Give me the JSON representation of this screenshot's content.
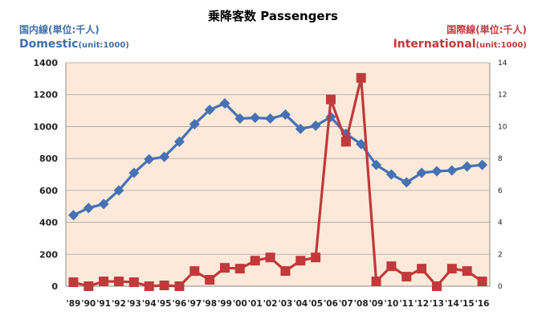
{
  "chart_data": {
    "type": "line",
    "title": "乗降客数 Passengers",
    "left_axis": {
      "label_jp": "国内線(単位:千人)",
      "label_en": "Domestic",
      "unit": "(unit:1000)",
      "ylim": [
        0,
        1400
      ],
      "ticks": [
        "0",
        "200",
        "400",
        "600",
        "800",
        "1000",
        "1200",
        "1400"
      ]
    },
    "right_axis": {
      "label_jp": "国際線(単位:千人)",
      "label_en": "International",
      "unit": "(unit:1000)",
      "ylim": [
        0,
        14
      ],
      "ticks": [
        "0",
        "2",
        "4",
        "6",
        "8",
        "10",
        "12",
        "14"
      ]
    },
    "categories": [
      "'89",
      "'90",
      "'91",
      "'92",
      "'93",
      "'94",
      "'95",
      "'96",
      "'97",
      "'98",
      "'99",
      "'00",
      "'01",
      "'02",
      "'03",
      "'04",
      "'05",
      "'06",
      "'07",
      "'08",
      "'09",
      "'10",
      "'11",
      "'12",
      "'13",
      "'14",
      "'15",
      "'16"
    ],
    "series": [
      {
        "name": "Domestic",
        "axis": "left",
        "marker": "diamond",
        "values": [
          445,
          490,
          515,
          600,
          710,
          795,
          810,
          905,
          1015,
          1105,
          1145,
          1050,
          1055,
          1050,
          1075,
          985,
          1005,
          1060,
          955,
          890,
          760,
          700,
          650,
          710,
          720,
          725,
          750,
          760
        ]
      },
      {
        "name": "International",
        "axis": "right",
        "marker": "square",
        "values": [
          0.25,
          0.0,
          0.3,
          0.3,
          0.25,
          0.0,
          0.05,
          0.0,
          0.95,
          0.4,
          1.15,
          1.1,
          1.6,
          1.8,
          0.95,
          1.6,
          1.8,
          11.7,
          9.05,
          13.05,
          0.3,
          1.25,
          0.6,
          1.1,
          0.0,
          1.1,
          0.95,
          0.3
        ]
      }
    ],
    "grid": true,
    "colors": {
      "domestic": "#4472b4",
      "international": "#c0393b",
      "plot_bg": "#fde9d9",
      "grid": "#a6a6a6",
      "domestic_label": "#3f6fa8"
    }
  }
}
